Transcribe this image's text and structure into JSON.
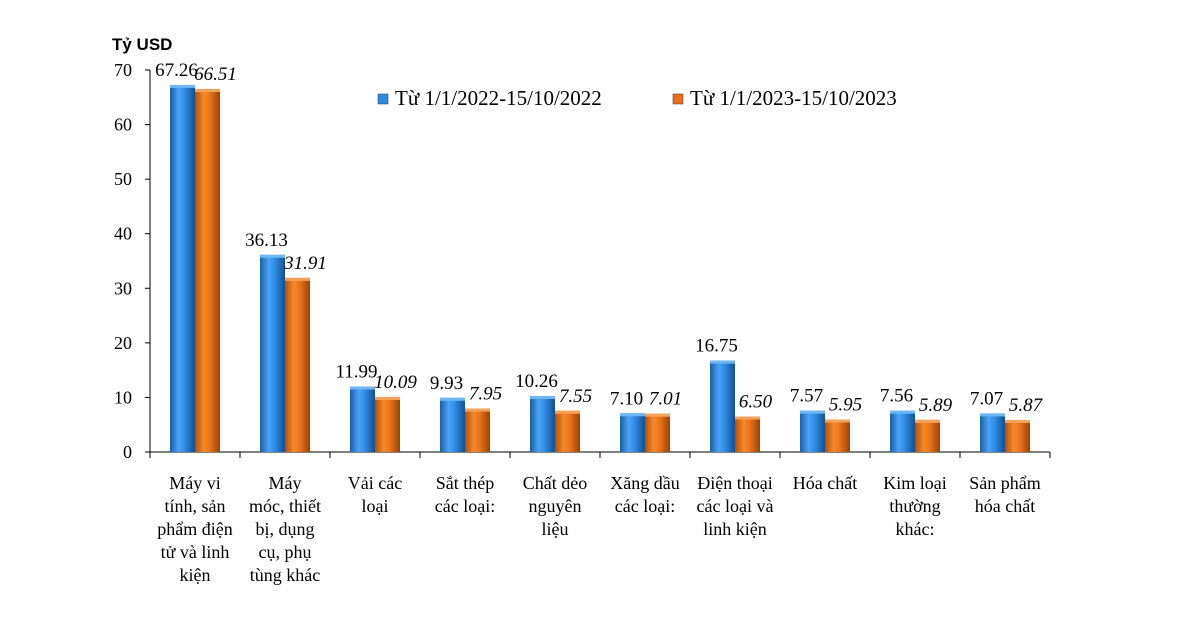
{
  "chart_data": {
    "type": "bar",
    "title": "",
    "ylabel": "Tỷ USD",
    "xlabel": "",
    "ylim": [
      0,
      70
    ],
    "yticks": [
      0,
      10,
      20,
      30,
      40,
      50,
      60,
      70
    ],
    "grid": false,
    "legend_position": "top-right",
    "categories": [
      [
        "Máy vi",
        "tính, sản",
        "phẩm điện",
        "tử và linh",
        "kiện"
      ],
      [
        "Máy",
        "móc, thiết",
        "bị, dụng",
        "cụ, phụ",
        "tùng khác"
      ],
      [
        "Vải các",
        "loại"
      ],
      [
        "Sắt thép",
        "các loại:"
      ],
      [
        "Chất dẻo",
        "nguyên",
        "liệu"
      ],
      [
        "Xăng dầu",
        "các loại:"
      ],
      [
        "Điện thoại",
        "các loại và",
        "linh kiện"
      ],
      [
        "Hóa chất"
      ],
      [
        "Kim loại",
        "thường",
        "khác:"
      ],
      [
        "Sản phẩm",
        "hóa chất"
      ]
    ],
    "series": [
      {
        "name": "Từ 1/1/2022-15/10/2022",
        "color": "#2E8BE6",
        "values": [
          67.26,
          36.13,
          11.99,
          9.93,
          10.26,
          7.1,
          16.75,
          7.57,
          7.56,
          7.07
        ],
        "labels": [
          "67.26",
          "36.13",
          "11.99",
          "9.93",
          "10.26",
          "7.10",
          "16.75",
          "7.57",
          "7.56",
          "7.07"
        ]
      },
      {
        "name": "Từ 1/1/2023-15/10/2023",
        "color": "#E8721A",
        "values": [
          66.51,
          31.91,
          10.09,
          7.95,
          7.55,
          7.01,
          6.5,
          5.95,
          5.89,
          5.87
        ],
        "labels": [
          "66.51",
          "31.91",
          "10.09",
          "7.95",
          "7.55",
          "7.01",
          "6.50",
          "5.95",
          "5.89",
          "5.87"
        ]
      }
    ]
  }
}
